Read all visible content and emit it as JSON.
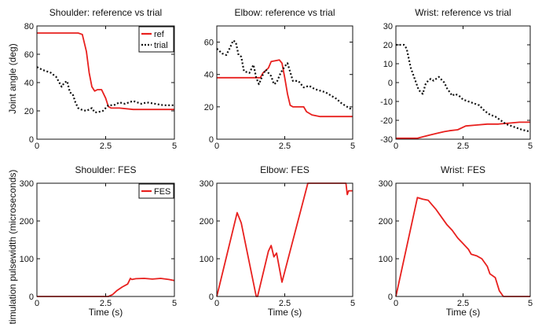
{
  "figure": {
    "ylabel_top": "Joint angle (deg)",
    "ylabel_bottom": "Stimulation pulsewidth (microseconds)"
  },
  "chart_data": [
    {
      "type": "line",
      "title": "Shoulder: reference vs trial",
      "xlabel": "",
      "xlim": [
        0,
        5
      ],
      "ylim": [
        0,
        80
      ],
      "xticks": [
        0,
        2.5,
        5
      ],
      "yticks": [
        0,
        20,
        40,
        60,
        80
      ],
      "legend": "top-right",
      "series": [
        {
          "name": "ref",
          "color": "#e8201e",
          "dash": "solid",
          "x": [
            0,
            1.5,
            1.65,
            1.8,
            1.9,
            2.0,
            2.1,
            2.2,
            2.35,
            2.5,
            2.6,
            2.7,
            3.0,
            3.5,
            4.0,
            4.5,
            5.0
          ],
          "y": [
            75,
            75,
            74,
            62,
            47,
            37,
            34,
            35,
            35,
            29,
            23,
            22,
            22,
            21,
            21,
            21,
            21
          ]
        },
        {
          "name": "trial",
          "color": "#111111",
          "dash": "dotted",
          "x": [
            0,
            0.2,
            0.5,
            0.7,
            0.9,
            1.0,
            1.1,
            1.2,
            1.3,
            1.4,
            1.5,
            1.6,
            1.8,
            2.0,
            2.1,
            2.2,
            2.4,
            2.6,
            2.8,
            3.0,
            3.2,
            3.5,
            3.8,
            4.0,
            4.3,
            4.6,
            5.0
          ],
          "y": [
            51,
            49,
            47,
            44,
            37,
            40,
            41,
            33,
            32,
            26,
            22,
            21,
            20,
            22,
            19,
            19,
            20,
            24,
            24,
            26,
            25,
            27,
            25,
            26,
            25,
            24,
            24
          ]
        }
      ]
    },
    {
      "type": "line",
      "title": "Elbow: reference vs  trial",
      "xlabel": "",
      "xlim": [
        0,
        5
      ],
      "ylim": [
        0,
        70
      ],
      "xticks": [
        0,
        2.5,
        5
      ],
      "yticks": [
        0,
        20,
        40,
        60
      ],
      "series": [
        {
          "name": "ref",
          "color": "#e8201e",
          "dash": "solid",
          "x": [
            0,
            1.5,
            1.6,
            1.7,
            1.9,
            2.0,
            2.3,
            2.4,
            2.5,
            2.6,
            2.7,
            2.8,
            3.0,
            3.2,
            3.3,
            3.5,
            3.8,
            4.2,
            5.0
          ],
          "y": [
            38,
            38,
            38,
            41,
            44,
            48,
            49,
            47,
            38,
            28,
            21,
            20,
            20,
            20,
            17,
            15,
            14,
            14,
            14
          ]
        },
        {
          "name": "trial",
          "color": "#111111",
          "dash": "dotted",
          "x": [
            0,
            0.2,
            0.35,
            0.5,
            0.6,
            0.7,
            0.8,
            0.9,
            1.0,
            1.2,
            1.35,
            1.45,
            1.55,
            1.7,
            1.8,
            1.9,
            2.0,
            2.1,
            2.2,
            2.35,
            2.5,
            2.6,
            2.8,
            3.0,
            3.2,
            3.4,
            3.6,
            3.8,
            4.0,
            4.2,
            4.4,
            4.6,
            5.0
          ],
          "y": [
            56,
            53,
            52,
            57,
            61,
            60,
            52,
            51,
            42,
            41,
            46,
            38,
            34,
            40,
            43,
            41,
            39,
            34,
            35,
            41,
            45,
            47,
            36,
            36,
            32,
            33,
            31,
            30,
            29,
            27,
            25,
            22,
            18
          ]
        }
      ]
    },
    {
      "type": "line",
      "title": "Wrist: reference vs  trial",
      "xlabel": "",
      "xlim": [
        0,
        5
      ],
      "ylim": [
        -30,
        30
      ],
      "xticks": [
        0,
        2.5,
        5
      ],
      "yticks": [
        -30,
        -20,
        -10,
        0,
        10,
        20,
        30
      ],
      "series": [
        {
          "name": "ref",
          "color": "#e8201e",
          "dash": "solid",
          "x": [
            0,
            0.8,
            1.2,
            1.5,
            1.8,
            2.0,
            2.3,
            2.6,
            3.0,
            3.4,
            3.8,
            4.2,
            4.6,
            5.0
          ],
          "y": [
            -29.5,
            -29.5,
            -28,
            -27,
            -26,
            -25.5,
            -25,
            -23,
            -22.5,
            -22,
            -22,
            -21.5,
            -21,
            -21
          ]
        },
        {
          "name": "trial",
          "color": "#111111",
          "dash": "dotted",
          "x": [
            0,
            0.3,
            0.4,
            0.55,
            0.7,
            0.85,
            1.0,
            1.1,
            1.2,
            1.3,
            1.4,
            1.6,
            1.8,
            1.9,
            2.0,
            2.1,
            2.2,
            2.35,
            2.5,
            2.7,
            2.9,
            3.1,
            3.3,
            3.5,
            3.7,
            3.9,
            4.1,
            4.3,
            4.5,
            4.7,
            5.0
          ],
          "y": [
            20,
            20,
            18,
            8,
            2,
            -4,
            -6,
            -1,
            1,
            2,
            1,
            3,
            0,
            -3,
            -5,
            -7,
            -6,
            -7,
            -9,
            -10,
            -11,
            -12,
            -15,
            -17,
            -18,
            -20,
            -22,
            -23,
            -24,
            -25,
            -26
          ]
        }
      ]
    },
    {
      "type": "line",
      "title": "Shoulder: FES",
      "xlabel": "Time (s)",
      "xlim": [
        0,
        5
      ],
      "ylim": [
        0,
        300
      ],
      "xticks": [
        0,
        2.5,
        5
      ],
      "yticks": [
        0,
        100,
        200,
        300
      ],
      "legend": "top-right",
      "series": [
        {
          "name": "FES",
          "color": "#e8201e",
          "dash": "solid",
          "x": [
            0,
            2.6,
            2.75,
            2.9,
            3.1,
            3.3,
            3.4,
            3.45,
            3.6,
            3.9,
            4.2,
            4.5,
            4.8,
            5.0
          ],
          "y": [
            0,
            0,
            5,
            15,
            25,
            33,
            48,
            45,
            47,
            48,
            46,
            48,
            45,
            42
          ]
        }
      ]
    },
    {
      "type": "line",
      "title": "Elbow: FES",
      "xlabel": "Time (s)",
      "xlim": [
        0,
        5
      ],
      "ylim": [
        0,
        300
      ],
      "xticks": [
        0,
        2.5,
        5
      ],
      "yticks": [
        0,
        100,
        200,
        300
      ],
      "series": [
        {
          "name": "FES",
          "color": "#e8201e",
          "dash": "solid",
          "x": [
            0,
            0.75,
            0.9,
            1.45,
            1.5,
            1.9,
            2.0,
            2.1,
            2.2,
            2.4,
            3.35,
            4.75,
            4.8,
            4.85,
            5.0
          ],
          "y": [
            0,
            222,
            195,
            0,
            0,
            120,
            135,
            105,
            115,
            38,
            300,
            300,
            270,
            280,
            280
          ]
        }
      ]
    },
    {
      "type": "line",
      "title": "Wrist: FES",
      "xlabel": "Time (s)",
      "xlim": [
        0,
        5
      ],
      "ylim": [
        0,
        300
      ],
      "xticks": [
        0,
        2.5,
        5
      ],
      "yticks": [
        0,
        100,
        200,
        300
      ],
      "series": [
        {
          "name": "FES",
          "color": "#e8201e",
          "dash": "solid",
          "x": [
            0,
            0.8,
            1.0,
            1.2,
            1.5,
            1.7,
            1.9,
            2.1,
            2.3,
            2.5,
            2.7,
            2.8,
            3.0,
            3.2,
            3.4,
            3.5,
            3.7,
            3.85,
            4.0,
            5.0
          ],
          "y": [
            0,
            262,
            258,
            255,
            230,
            210,
            190,
            175,
            155,
            140,
            125,
            112,
            108,
            100,
            80,
            60,
            50,
            15,
            0,
            0
          ]
        }
      ]
    }
  ]
}
